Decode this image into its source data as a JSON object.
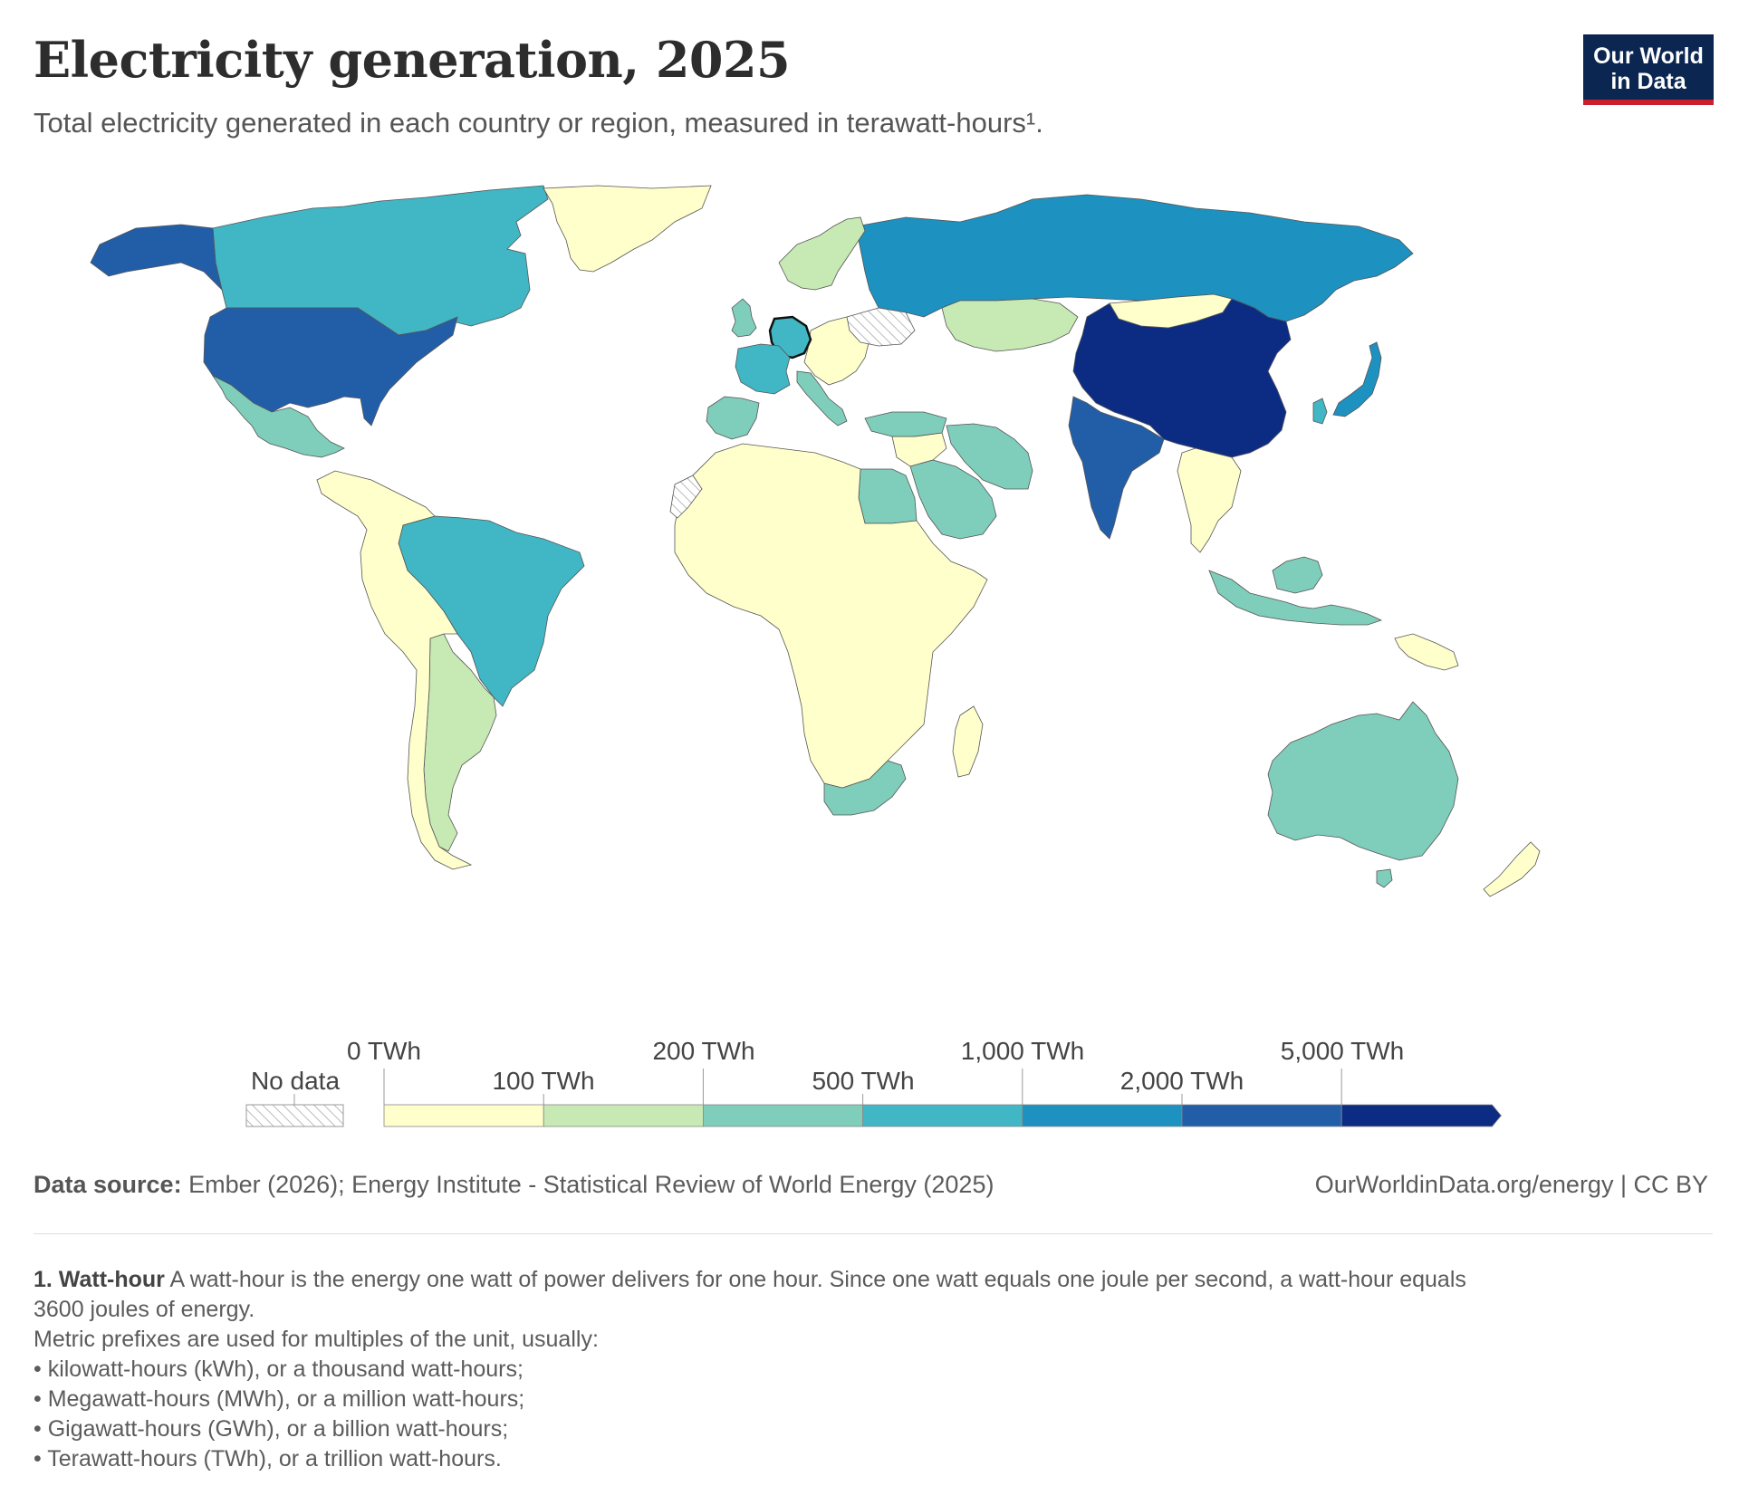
{
  "header": {
    "title": "Electricity generation, 2025",
    "subtitle": "Total electricity generated in each country or region, measured in terawatt-hours¹.",
    "logo_line1": "Our World",
    "logo_line2": "in Data"
  },
  "colors": {
    "no_data": "#ffffff",
    "bins": [
      "#ffffcc",
      "#c7e9b4",
      "#7fcdbb",
      "#41b6c4",
      "#1d91c0",
      "#225ea8",
      "#0c2c84"
    ],
    "border": "#555555",
    "highlight_border": "#111111"
  },
  "legend": {
    "no_data_label": "No data",
    "ticks": [
      "0 TWh",
      "100 TWh",
      "200 TWh",
      "500 TWh",
      "1,000 TWh",
      "2,000 TWh",
      "5,000 TWh"
    ]
  },
  "chart_data": {
    "type": "choropleth",
    "title": "Electricity generation, 2025",
    "unit": "TWh",
    "bin_thresholds": [
      0,
      100,
      200,
      500,
      1000,
      2000,
      5000
    ],
    "regions": [
      {
        "name": "Canada",
        "bin": 3
      },
      {
        "name": "Alaska",
        "bin": 5
      },
      {
        "name": "United States",
        "bin": 5
      },
      {
        "name": "Mexico",
        "bin": 2
      },
      {
        "name": "Greenland",
        "bin": 0
      },
      {
        "name": "Brazil",
        "bin": 3
      },
      {
        "name": "Argentina",
        "bin": 1
      },
      {
        "name": "Rest of South America",
        "bin": 0
      },
      {
        "name": "Russia",
        "bin": 4
      },
      {
        "name": "China",
        "bin": 6
      },
      {
        "name": "India",
        "bin": 5
      },
      {
        "name": "Japan",
        "bin": 4
      },
      {
        "name": "South Korea",
        "bin": 3
      },
      {
        "name": "Mongolia",
        "bin": 0
      },
      {
        "name": "Kazakhstan",
        "bin": 1
      },
      {
        "name": "Iran",
        "bin": 2
      },
      {
        "name": "Saudi Arabia",
        "bin": 2
      },
      {
        "name": "Turkey",
        "bin": 2
      },
      {
        "name": "Egypt",
        "bin": 2
      },
      {
        "name": "Indonesia",
        "bin": 2
      },
      {
        "name": "Australia",
        "bin": 2
      },
      {
        "name": "South Africa",
        "bin": 2
      },
      {
        "name": "Africa (other)",
        "bin": 0
      },
      {
        "name": "Germany",
        "bin": 3
      },
      {
        "name": "France",
        "bin": 3
      },
      {
        "name": "United Kingdom",
        "bin": 2
      },
      {
        "name": "Spain",
        "bin": 2
      },
      {
        "name": "Italy",
        "bin": 2
      },
      {
        "name": "Scandinavia",
        "bin": 1
      },
      {
        "name": "Ukraine",
        "bin": -1
      },
      {
        "name": "Western Sahara",
        "bin": -1
      },
      {
        "name": "New Zealand",
        "bin": 0
      }
    ]
  },
  "footer": {
    "source_label": "Data source:",
    "source_text": "Ember (2026); Energy Institute - Statistical Review of World Energy (2025)",
    "url": "OurWorldinData.org/energy | CC BY"
  },
  "footnote": {
    "term": "1. Watt-hour",
    "line1": "A watt-hour is the energy one watt of power delivers for one hour. Since one watt equals one joule per second, a watt-hour equals",
    "line2": "3600 joules of energy.",
    "line3": "Metric prefixes are used for multiples of the unit, usually:",
    "bullets": [
      "• kilowatt-hours (kWh), or a thousand watt-hours;",
      "• Megawatt-hours (MWh), or a million watt-hours;",
      "• Gigawatt-hours (GWh), or a billion watt-hours;",
      "• Terawatt-hours (TWh), or a trillion watt-hours."
    ]
  }
}
